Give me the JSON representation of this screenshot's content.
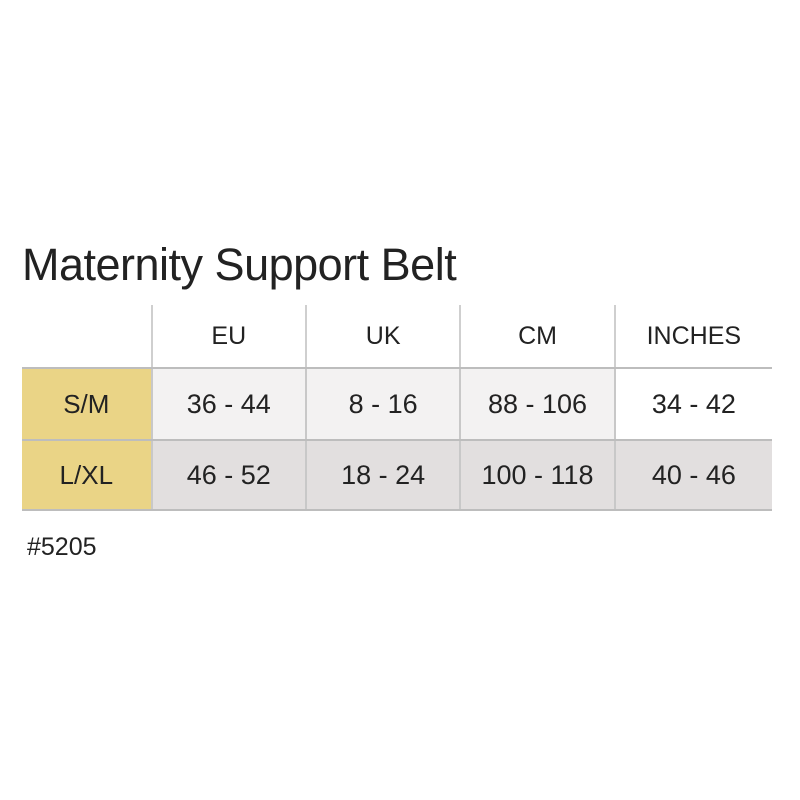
{
  "title": "Maternity Support Belt",
  "table": {
    "columns": [
      "EU",
      "UK",
      "CM",
      "INCHES"
    ],
    "rows": [
      {
        "size": "S/M",
        "values": [
          "36 - 44",
          "8 - 16",
          "88 - 106",
          "34 - 42"
        ]
      },
      {
        "size": "L/XL",
        "values": [
          "46 - 52",
          "18 - 24",
          "100 - 118",
          "40 - 46"
        ]
      }
    ]
  },
  "sku": "#5205",
  "colors": {
    "size_cell": "#ead486",
    "row_light": "#f3f2f2",
    "row_dark": "#e2dfdf",
    "text": "#222222"
  }
}
